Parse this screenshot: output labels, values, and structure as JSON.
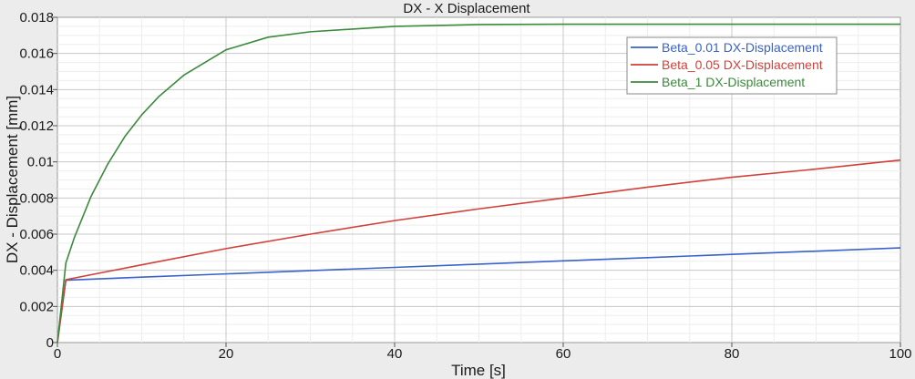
{
  "chart_data": {
    "type": "line",
    "title": "DX - X Displacement",
    "xlabel": "Time [s]",
    "ylabel": "DX - Displacement [mm]",
    "xlim": [
      0,
      100
    ],
    "ylim": [
      0,
      0.018
    ],
    "x_ticks": [
      0,
      20,
      40,
      60,
      80,
      100
    ],
    "y_ticks": [
      0,
      0.002,
      0.004,
      0.006,
      0.008,
      0.01,
      0.012,
      0.014,
      0.016,
      0.018
    ],
    "x_tick_labels": [
      "0",
      "20",
      "40",
      "60",
      "80",
      "100"
    ],
    "y_tick_labels": [
      "0",
      "0.002",
      "0.004",
      "0.006",
      "0.008",
      "0.01",
      "0.012",
      "0.014",
      "0.016",
      "0.018"
    ],
    "grid": true,
    "legend_position": "top-right",
    "series": [
      {
        "name": "Beta_0.01 DX-Displacement",
        "color": "#3a62c8",
        "x": [
          0,
          1,
          10,
          20,
          30,
          40,
          50,
          60,
          70,
          80,
          90,
          100
        ],
        "y": [
          0,
          0.00345,
          0.00362,
          0.0038,
          0.00398,
          0.00416,
          0.00434,
          0.00452,
          0.0047,
          0.00488,
          0.00506,
          0.00524
        ]
      },
      {
        "name": "Beta_0.05 DX-Displacement",
        "color": "#d1413a",
        "x": [
          0,
          1,
          10,
          20,
          30,
          40,
          50,
          60,
          70,
          80,
          90,
          100
        ],
        "y": [
          0,
          0.00348,
          0.0043,
          0.0052,
          0.006,
          0.00675,
          0.0074,
          0.008,
          0.0086,
          0.00915,
          0.0096,
          0.0101
        ]
      },
      {
        "name": "Beta_1 DX-Displacement",
        "color": "#3b8a3b",
        "x": [
          0,
          1,
          2,
          4,
          6,
          8,
          10,
          12,
          15,
          20,
          25,
          30,
          40,
          50,
          60,
          70,
          80,
          90,
          100
        ],
        "y": [
          0,
          0.0044,
          0.0058,
          0.0081,
          0.0099,
          0.0114,
          0.0126,
          0.0136,
          0.0148,
          0.0162,
          0.0169,
          0.0172,
          0.0175,
          0.0176,
          0.01762,
          0.01762,
          0.01762,
          0.01762,
          0.01762
        ]
      }
    ]
  }
}
